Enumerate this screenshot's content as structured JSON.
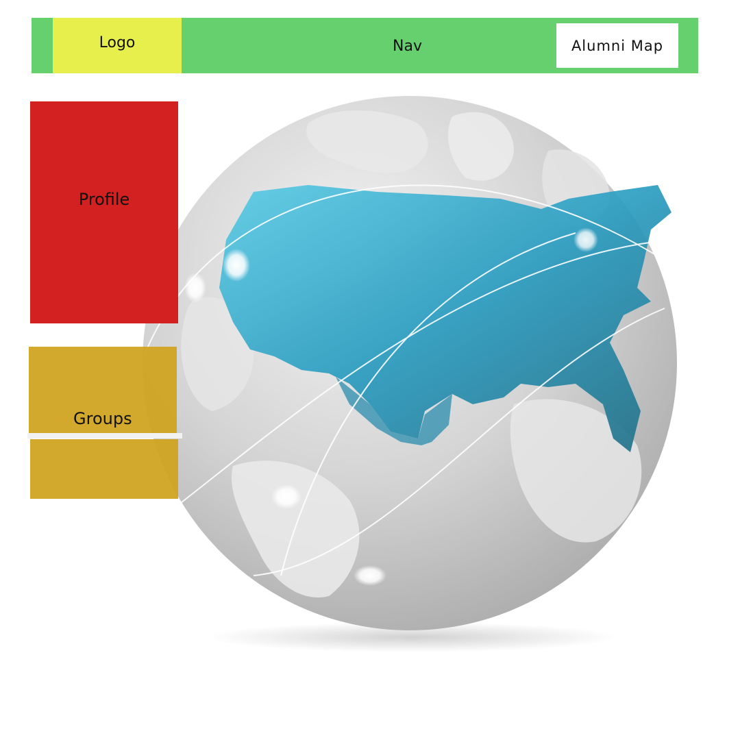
{
  "header": {
    "logo_label": "Logo",
    "nav_label": "Nav",
    "alumni_map_label": "Alumni Map"
  },
  "sidebar": {
    "profile_label": "Profile",
    "groups_label": "Groups"
  },
  "colors": {
    "header_bg": "#66cf6e",
    "logo_bg": "#e6ef4b",
    "profile_bg": "#d32020",
    "groups_bg": "#cfa41f",
    "map_blue": "#3aa8c6",
    "globe_gray": "#c9c9c9"
  },
  "graphic": {
    "name": "globe-with-us-map",
    "icon": "globe-icon"
  }
}
